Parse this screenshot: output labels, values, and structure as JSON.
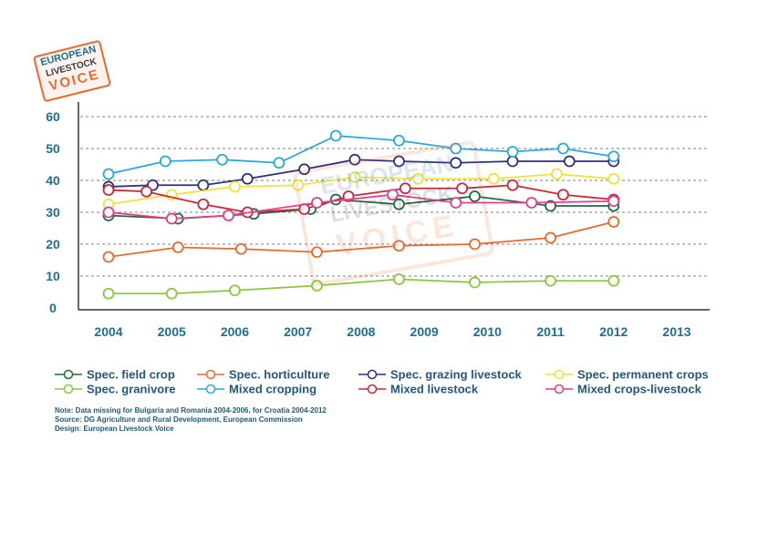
{
  "logo": {
    "line1": "EUROPEAN",
    "line2": "LIVESTOCK",
    "line3": "VOICE"
  },
  "notes": [
    "Note: Data missing for Bulgaria and Romania 2004-2006, for Croatia 2004-2012",
    "Source: DG Agriculture and Rural Development, European Commission",
    "Design: European Livestock Voice"
  ],
  "chart_data": {
    "type": "line",
    "title": "",
    "xlabel": "",
    "ylabel": "",
    "x_ticks": [
      "2004",
      "2005",
      "2006",
      "2007",
      "2008",
      "2009",
      "2010",
      "2011",
      "2012",
      "2013"
    ],
    "y_ticks": [
      0,
      10,
      20,
      30,
      40,
      50,
      60
    ],
    "xlim": [
      2004,
      2013
    ],
    "ylim": [
      0,
      60
    ],
    "grid": "horizontal dashed",
    "legend_position": "bottom",
    "series": [
      {
        "name": "Spec. field crop",
        "color": "#1e6b3c",
        "x": [
          2004.0,
          2005.1,
          2006.3,
          2007.2,
          2007.6,
          2008.6,
          2009.8,
          2011.0,
          2012.0
        ],
        "y": [
          29,
          28,
          29.5,
          31,
          34,
          32.5,
          35,
          32,
          32
        ]
      },
      {
        "name": "Spec. horticulture",
        "color": "#e8692e",
        "x": [
          2004.0,
          2005.1,
          2006.1,
          2007.3,
          2008.6,
          2009.8,
          2011.0,
          2012.0
        ],
        "y": [
          16,
          19,
          18.5,
          17.5,
          19.5,
          20,
          22,
          27
        ]
      },
      {
        "name": "Spec. grazing livestock",
        "color": "#2f2f7a",
        "x": [
          2004.0,
          2004.7,
          2005.5,
          2006.2,
          2007.1,
          2007.9,
          2008.6,
          2009.5,
          2010.4,
          2011.3,
          2012.0
        ],
        "y": [
          38,
          38.5,
          38.5,
          40.5,
          43.5,
          46.5,
          46,
          45.5,
          46,
          46,
          46
        ]
      },
      {
        "name": "Spec. permanent crops",
        "color": "#f0e23a",
        "x": [
          2004.0,
          2005.0,
          2006.0,
          2007.0,
          2007.9,
          2008.9,
          2010.1,
          2011.1,
          2012.0
        ],
        "y": [
          32.5,
          35.5,
          38,
          38.5,
          41,
          40.5,
          40.5,
          42,
          40.5
        ]
      },
      {
        "name": "Spec. granivore",
        "color": "#8cc63f",
        "x": [
          2004.0,
          2005.0,
          2006.0,
          2007.3,
          2008.6,
          2009.8,
          2011.0,
          2012.0
        ],
        "y": [
          4.5,
          4.5,
          5.5,
          7,
          9,
          8,
          8.5,
          8.5
        ]
      },
      {
        "name": "Mixed cropping",
        "color": "#29a8e0",
        "x": [
          2004.0,
          2004.9,
          2005.8,
          2006.7,
          2007.6,
          2008.6,
          2009.5,
          2010.4,
          2011.2,
          2012.0
        ],
        "y": [
          42,
          46,
          46.5,
          45.5,
          54,
          52.5,
          50,
          49,
          50,
          47.5
        ]
      },
      {
        "name": "Mixed livestock",
        "color": "#c8283a",
        "x": [
          2004.0,
          2004.6,
          2005.5,
          2006.2,
          2007.1,
          2007.8,
          2008.7,
          2009.6,
          2010.4,
          2011.2,
          2012.0
        ],
        "y": [
          37,
          36.5,
          32.5,
          30,
          31,
          35,
          37.5,
          37.5,
          38.5,
          35.5,
          34
        ]
      },
      {
        "name": "Mixed crops-livestock",
        "color": "#e23d8f",
        "x": [
          2004.0,
          2005.0,
          2005.9,
          2007.3,
          2008.5,
          2009.5,
          2010.7,
          2012.0
        ],
        "y": [
          30,
          28,
          29,
          33,
          35.5,
          33,
          33,
          33.5
        ]
      }
    ]
  }
}
